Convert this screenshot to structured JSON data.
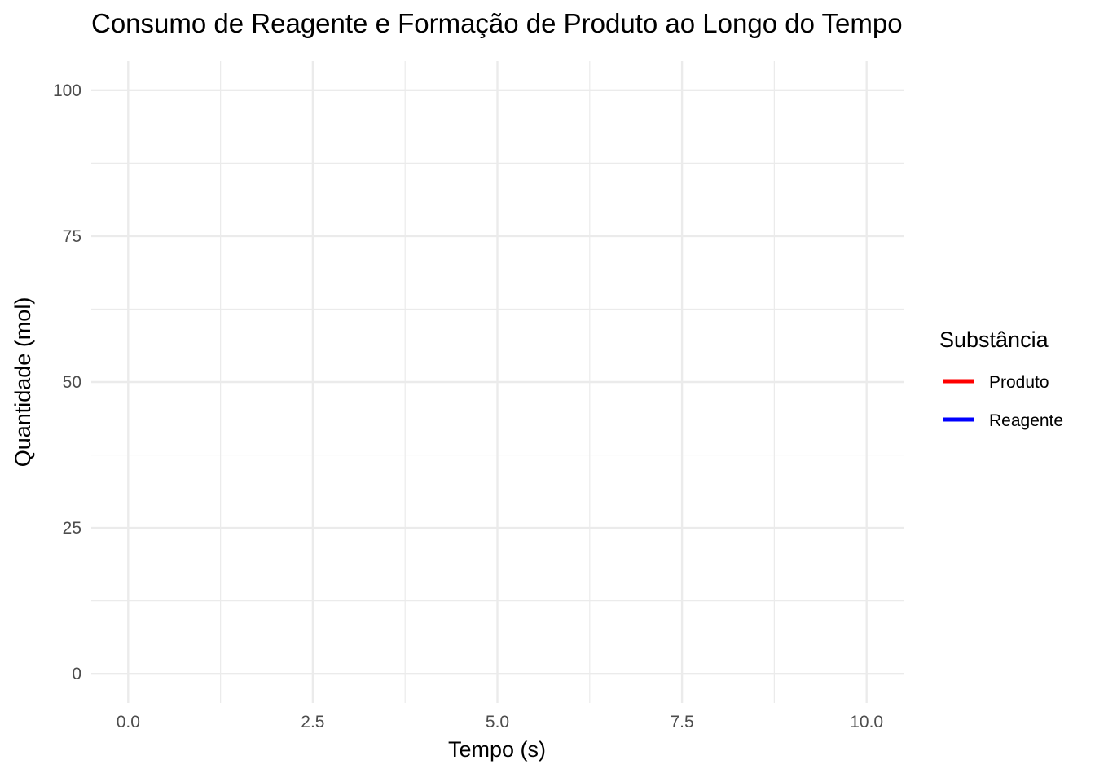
{
  "chart_data": {
    "type": "line",
    "title": "Consumo de Reagente e Formação de Produto ao Longo do Tempo",
    "xlabel": "Tempo (s)",
    "ylabel": "Quantidade (mol)",
    "xlim": [
      -0.5,
      10.5
    ],
    "ylim": [
      -5,
      105
    ],
    "x_ticks": [
      0,
      2.5,
      5,
      7.5,
      10
    ],
    "x_tick_labels": [
      "0.0",
      "2.5",
      "5.0",
      "7.5",
      "10.0"
    ],
    "y_ticks": [
      0,
      25,
      50,
      75,
      100
    ],
    "y_tick_labels": [
      "0",
      "25",
      "50",
      "75",
      "100"
    ],
    "grid": true,
    "legend": {
      "title": "Substância",
      "placement": "right",
      "entries": [
        {
          "label": "Produto",
          "color": "#ff0000"
        },
        {
          "label": "Reagente",
          "color": "#0000ff"
        }
      ]
    },
    "series": [
      {
        "name": "Produto",
        "color": "#ff0000",
        "x": [],
        "y": []
      },
      {
        "name": "Reagente",
        "color": "#0000ff",
        "x": [],
        "y": []
      }
    ]
  }
}
